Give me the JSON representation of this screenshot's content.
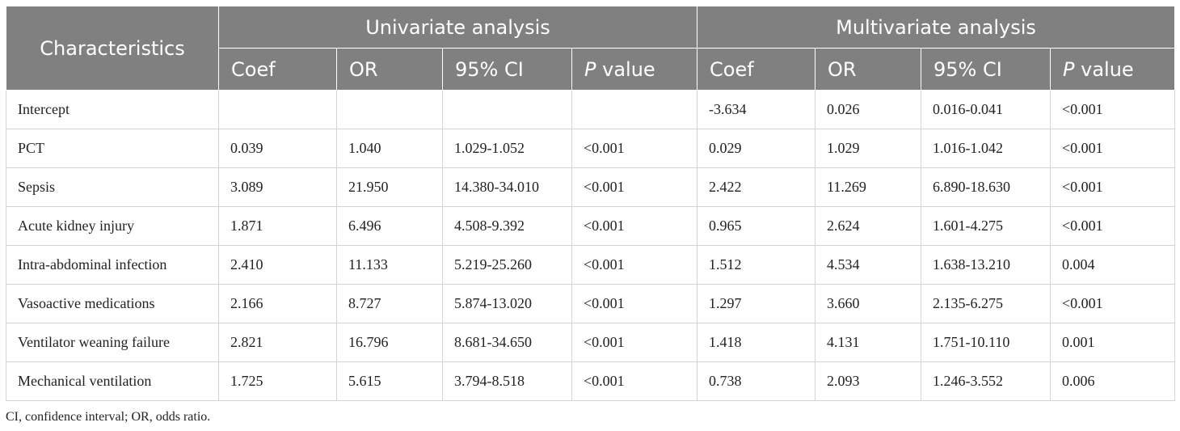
{
  "table": {
    "characteristics_header": "Characteristics",
    "groups": [
      "Univariate analysis",
      "Multivariate analysis"
    ],
    "subheaders": [
      {
        "prefix": "",
        "italic": "",
        "suffix": "Coef"
      },
      {
        "prefix": "",
        "italic": "",
        "suffix": "OR"
      },
      {
        "prefix": "",
        "italic": "",
        "suffix": "95% CI"
      },
      {
        "prefix": "",
        "italic": "P",
        "suffix": " value"
      },
      {
        "prefix": "",
        "italic": "",
        "suffix": "Coef"
      },
      {
        "prefix": "",
        "italic": "",
        "suffix": "OR"
      },
      {
        "prefix": "",
        "italic": "",
        "suffix": "95% CI"
      },
      {
        "prefix": "",
        "italic": "P",
        "suffix": " value"
      }
    ],
    "rows": [
      [
        "Intercept",
        "",
        "",
        "",
        "",
        "-3.634",
        "0.026",
        "0.016-0.041",
        "<0.001"
      ],
      [
        "PCT",
        "0.039",
        "1.040",
        "1.029-1.052",
        "<0.001",
        "0.029",
        "1.029",
        "1.016-1.042",
        "<0.001"
      ],
      [
        "Sepsis",
        "3.089",
        "21.950",
        "14.380-34.010",
        "<0.001",
        "2.422",
        "11.269",
        "6.890-18.630",
        "<0.001"
      ],
      [
        "Acute kidney injury",
        "1.871",
        "6.496",
        "4.508-9.392",
        "<0.001",
        "0.965",
        "2.624",
        "1.601-4.275",
        "<0.001"
      ],
      [
        "Intra-abdominal infection",
        "2.410",
        "11.133",
        "5.219-25.260",
        "<0.001",
        "1.512",
        "4.534",
        "1.638-13.210",
        "0.004"
      ],
      [
        "Vasoactive medications",
        "2.166",
        "8.727",
        "5.874-13.020",
        "<0.001",
        "1.297",
        "3.660",
        "2.135-6.275",
        "<0.001"
      ],
      [
        "Ventilator weaning failure",
        "2.821",
        "16.796",
        "8.681-34.650",
        "<0.001",
        "1.418",
        "4.131",
        "1.751-10.110",
        "0.001"
      ],
      [
        "Mechanical ventilation",
        "1.725",
        "5.615",
        "3.794-8.518",
        "<0.001",
        "0.738",
        "2.093",
        "1.246-3.552",
        "0.006"
      ]
    ]
  },
  "footnote": "CI, confidence interval; OR, odds ratio."
}
